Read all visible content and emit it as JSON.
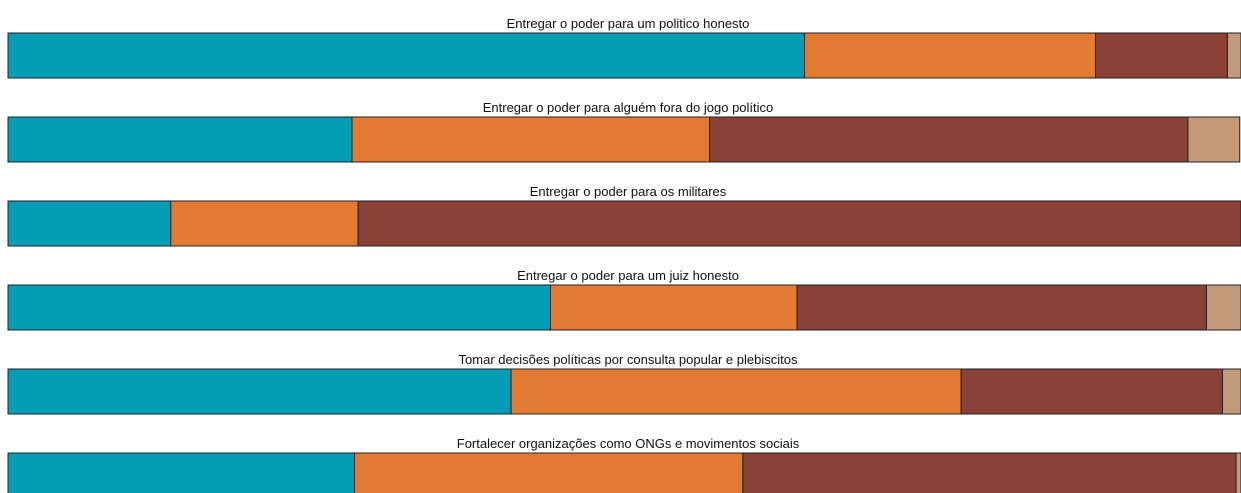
{
  "chart_data": [
    {
      "type": "bar",
      "title": "Entregar o poder para um politico honesto",
      "values": [
        64.6,
        23.6,
        10.7,
        1.1
      ],
      "colors": [
        "#049db5",
        "#e37a34",
        "#8a4238",
        "#c39a7a"
      ],
      "xlim": [
        0,
        100
      ]
    },
    {
      "type": "bar",
      "title": "Entregar o poder para alguém fora do jogo político",
      "values": [
        27.9,
        29.0,
        38.8,
        4.2
      ],
      "colors": [
        "#049db5",
        "#e37a34",
        "#8a4238",
        "#c39a7a"
      ],
      "xlim": [
        0,
        100
      ]
    },
    {
      "type": "bar",
      "title": "Entregar o poder para os militares",
      "values": [
        13.2,
        15.2,
        71.6,
        0
      ],
      "colors": [
        "#049db5",
        "#e37a34",
        "#8a4238",
        "#c39a7a"
      ],
      "xlim": [
        0,
        100
      ]
    },
    {
      "type": "bar",
      "title": "Entregar o poder para um juiz honesto",
      "values": [
        44.0,
        20.0,
        33.2,
        2.8
      ],
      "colors": [
        "#049db5",
        "#e37a34",
        "#8a4238",
        "#c39a7a"
      ],
      "xlim": [
        0,
        100
      ]
    },
    {
      "type": "bar",
      "title": "Tomar decisões políticas por consulta popular e plebiscitos",
      "values": [
        40.8,
        36.5,
        21.2,
        1.5
      ],
      "colors": [
        "#049db5",
        "#e37a34",
        "#8a4238",
        "#c39a7a"
      ],
      "xlim": [
        0,
        100
      ]
    },
    {
      "type": "bar",
      "title": "Fortalecer organizações como ONGs e movimentos sociais",
      "values": [
        28.1,
        31.5,
        40.0,
        0.4
      ],
      "colors": [
        "#049db5",
        "#e37a34",
        "#8a4238",
        "#c39a7a"
      ],
      "xlim": [
        0,
        100
      ]
    }
  ]
}
